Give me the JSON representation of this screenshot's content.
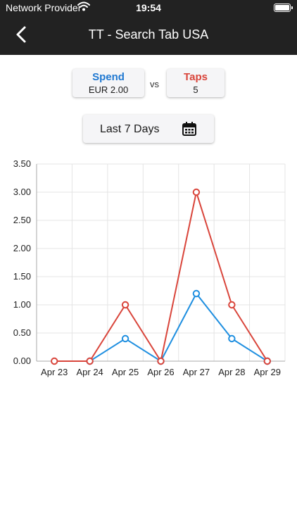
{
  "status_bar": {
    "carrier": "Network Provider",
    "time": "19:54"
  },
  "nav": {
    "title": "TT - Search Tab USA",
    "back_icon": "chevron-left-icon"
  },
  "metrics": {
    "spend": {
      "label": "Spend",
      "value": "EUR 2.00",
      "color": "#1f78d1"
    },
    "vs": "vs",
    "taps": {
      "label": "Taps",
      "value": "5",
      "color": "#d9453b"
    }
  },
  "date_range": {
    "label": "Last 7 Days",
    "icon": "calendar-icon"
  },
  "chart_data": {
    "type": "line",
    "categories": [
      "Apr 23",
      "Apr 24",
      "Apr 25",
      "Apr 26",
      "Apr 27",
      "Apr 28",
      "Apr 29"
    ],
    "y_ticks": [
      "0.00",
      "0.50",
      "1.00",
      "1.50",
      "2.00",
      "2.50",
      "3.00",
      "3.50"
    ],
    "ylim": [
      0,
      3.5
    ],
    "grid": true,
    "series": [
      {
        "values": [
          null,
          0,
          0.4,
          0,
          1.2,
          0.4,
          0
        ],
        "color": "#1f8fe0"
      },
      {
        "values": [
          0,
          0,
          1.0,
          0,
          3.0,
          1.0,
          0
        ],
        "color": "#d9453b"
      }
    ]
  }
}
